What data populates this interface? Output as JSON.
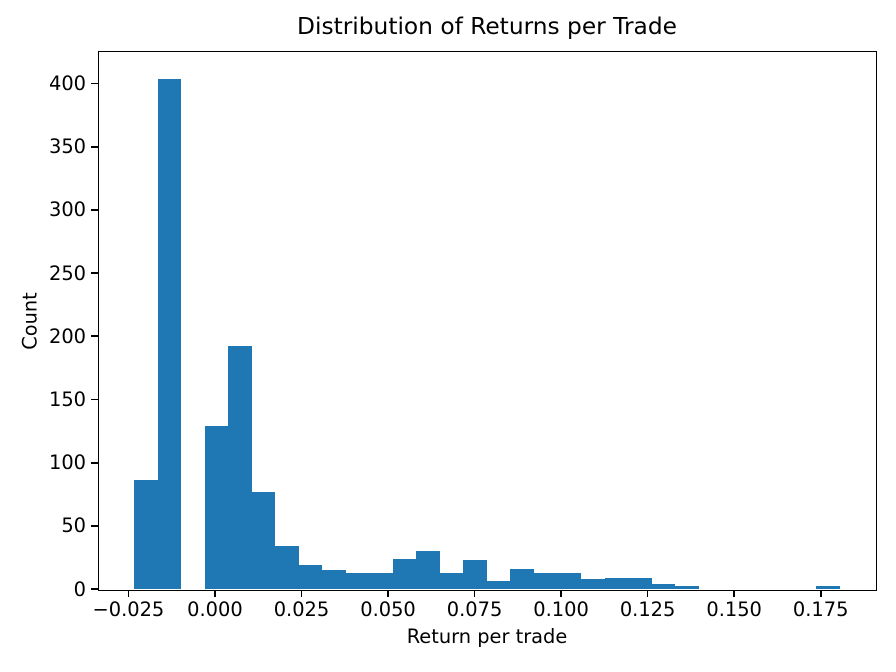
{
  "chart_data": {
    "type": "bar",
    "subtype": "histogram",
    "title": "Distribution of Returns per Trade",
    "xlabel": "Return per trade",
    "ylabel": "Count",
    "bar_color": "#1f77b4",
    "background_color": "#ffffff",
    "spine_color": "#000000",
    "text_color": "#000000",
    "grid": false,
    "legend": null,
    "bin_start": -0.0233,
    "bin_width": 0.006793,
    "counts": [
      86,
      404,
      0,
      129,
      192,
      77,
      34,
      19,
      15,
      13,
      13,
      24,
      30,
      13,
      23,
      6,
      16,
      13,
      13,
      8,
      9,
      9,
      4,
      2,
      0,
      0,
      0,
      0,
      0,
      2
    ],
    "xlim": [
      -0.0335,
      0.1907
    ],
    "ylim": [
      0,
      425
    ],
    "xticks": [
      {
        "value": -0.025,
        "label": "−0.025"
      },
      {
        "value": 0.0,
        "label": "0.000"
      },
      {
        "value": 0.025,
        "label": "0.025"
      },
      {
        "value": 0.05,
        "label": "0.050"
      },
      {
        "value": 0.075,
        "label": "0.075"
      },
      {
        "value": 0.1,
        "label": "0.100"
      },
      {
        "value": 0.125,
        "label": "0.125"
      },
      {
        "value": 0.15,
        "label": "0.150"
      },
      {
        "value": 0.175,
        "label": "0.175"
      }
    ],
    "yticks": [
      {
        "value": 0,
        "label": "0"
      },
      {
        "value": 50,
        "label": "50"
      },
      {
        "value": 100,
        "label": "100"
      },
      {
        "value": 150,
        "label": "150"
      },
      {
        "value": 200,
        "label": "200"
      },
      {
        "value": 250,
        "label": "250"
      },
      {
        "value": 300,
        "label": "300"
      },
      {
        "value": 350,
        "label": "350"
      },
      {
        "value": 400,
        "label": "400"
      }
    ]
  }
}
